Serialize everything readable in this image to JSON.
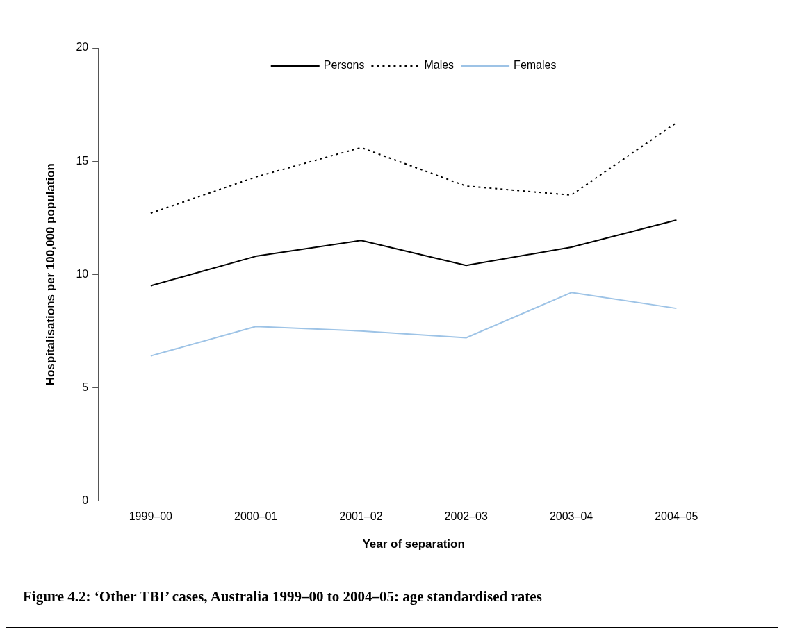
{
  "chart_data": {
    "type": "line",
    "title": "Figure 4.2: ‘Other TBI’ cases, Australia 1999–00 to 2004–05: age standardised rates",
    "xlabel": "Year of separation",
    "ylabel": "Hospitalisations per 100,000 population",
    "categories": [
      "1999–00",
      "2000–01",
      "2001–02",
      "2002–03",
      "2003–04",
      "2004–05"
    ],
    "series": [
      {
        "name": "Persons",
        "color": "#000000",
        "line_style": "solid",
        "values": [
          9.5,
          10.8,
          11.5,
          10.4,
          11.2,
          12.4
        ]
      },
      {
        "name": "Males",
        "color": "#000000",
        "line_style": "dotted",
        "values": [
          12.7,
          14.3,
          15.6,
          13.9,
          13.5,
          16.7
        ]
      },
      {
        "name": "Females",
        "color": "#9dc3e6",
        "line_style": "solid",
        "values": [
          6.4,
          7.7,
          7.5,
          7.2,
          9.2,
          8.5
        ]
      }
    ],
    "ylim": [
      0,
      20
    ],
    "yticks": [
      0,
      5,
      10,
      15,
      20
    ],
    "grid": false,
    "legend": "top",
    "marker": "none"
  }
}
